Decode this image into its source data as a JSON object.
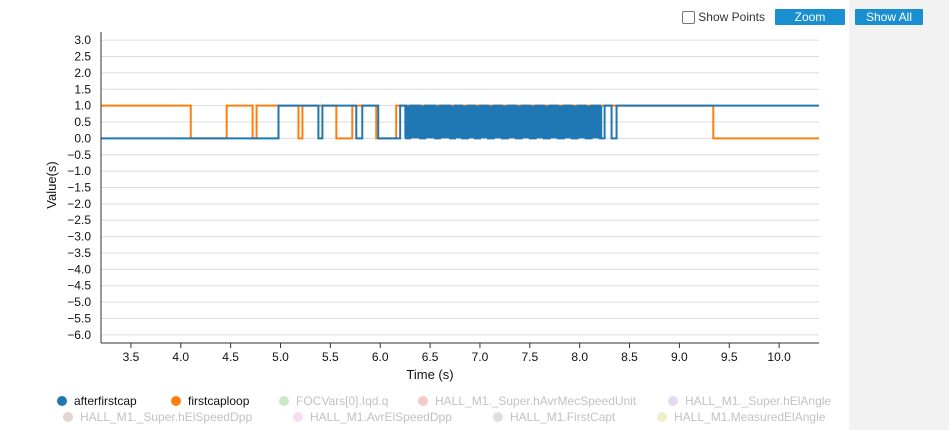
{
  "toolbar": {
    "show_points_label": "Show Points",
    "show_points_checked": false,
    "zoom_label": "Zoom",
    "show_all_label": "Show All"
  },
  "chart_data": {
    "type": "line",
    "title": "",
    "xlabel": "Time (s)",
    "ylabel": "Value(s)",
    "xlim": [
      3.2,
      10.4
    ],
    "ylim": [
      -6.25,
      3.25
    ],
    "x_ticks": [
      "3.5",
      "4.0",
      "4.5",
      "5.0",
      "5.5",
      "6.0",
      "6.5",
      "7.0",
      "7.5",
      "8.0",
      "8.5",
      "9.0",
      "9.5",
      "10.0"
    ],
    "y_ticks": [
      "3.0",
      "2.5",
      "2.0",
      "1.5",
      "1.0",
      "0.5",
      "0.0",
      "−0.5",
      "−1.0",
      "−1.5",
      "−2.0",
      "−2.5",
      "−3.0",
      "−3.5",
      "−4.0",
      "−4.5",
      "−5.0",
      "−5.5",
      "−6.0"
    ],
    "grid": true,
    "legend_position": "bottom",
    "series": [
      {
        "name": "afterfirstcap",
        "color": "#1f77b4",
        "active": true,
        "steps": [
          [
            3.2,
            0
          ],
          [
            4.98,
            1
          ],
          [
            5.38,
            0
          ],
          [
            5.42,
            1
          ],
          [
            5.76,
            0
          ],
          [
            5.82,
            1
          ],
          [
            5.98,
            0
          ],
          [
            6.2,
            1
          ],
          [
            6.26,
            0
          ],
          [
            6.3,
            1
          ],
          [
            6.4,
            0
          ],
          [
            6.45,
            1
          ],
          [
            6.55,
            0
          ],
          [
            6.6,
            1
          ],
          [
            6.7,
            0
          ],
          [
            6.75,
            1
          ],
          [
            6.82,
            0
          ],
          [
            6.88,
            1
          ],
          [
            6.95,
            0
          ],
          [
            7.0,
            1
          ],
          [
            7.08,
            0
          ],
          [
            7.14,
            1
          ],
          [
            7.22,
            0
          ],
          [
            7.28,
            1
          ],
          [
            7.36,
            0
          ],
          [
            7.42,
            1
          ],
          [
            7.5,
            0
          ],
          [
            7.56,
            1
          ],
          [
            7.64,
            0
          ],
          [
            7.7,
            1
          ],
          [
            7.78,
            0
          ],
          [
            7.84,
            1
          ],
          [
            7.92,
            0
          ],
          [
            7.98,
            1
          ],
          [
            8.06,
            0
          ],
          [
            8.12,
            1
          ],
          [
            8.2,
            0
          ],
          [
            8.25,
            1
          ],
          [
            8.32,
            0
          ],
          [
            8.37,
            1
          ],
          [
            10.4,
            1
          ]
        ],
        "dense_toggle": {
          "start": 6.25,
          "end": 8.22,
          "step": 0.012
        }
      },
      {
        "name": "firstcaploop",
        "color": "#ff7f0e",
        "active": true,
        "steps": [
          [
            3.2,
            1
          ],
          [
            4.1,
            0
          ],
          [
            4.46,
            1
          ],
          [
            4.72,
            0
          ],
          [
            4.76,
            1
          ],
          [
            5.18,
            0
          ],
          [
            5.22,
            1
          ],
          [
            5.56,
            0
          ],
          [
            5.72,
            1
          ],
          [
            5.96,
            0
          ],
          [
            6.16,
            1
          ],
          [
            9.34,
            0
          ],
          [
            10.4,
            0
          ]
        ]
      }
    ],
    "legend": [
      {
        "name": "afterfirstcap",
        "color": "#1f77b4",
        "active": true
      },
      {
        "name": "firstcaploop",
        "color": "#ff7f0e",
        "active": true
      },
      {
        "name": "FOCVars[0].Iqd.q",
        "color": "#2ca02c",
        "active": false
      },
      {
        "name": "HALL_M1._Super.hAvrMecSpeedUnit",
        "color": "#d62728",
        "active": false
      },
      {
        "name": "HALL_M1._Super.hElAngle",
        "color": "#9467bd",
        "active": false
      },
      {
        "name": "HALL_M1._Super.hElSpeedDpp",
        "color": "#8c564b",
        "active": false
      },
      {
        "name": "HALL_M1.AvrElSpeedDpp",
        "color": "#e377c2",
        "active": false
      },
      {
        "name": "HALL_M1.FirstCapt",
        "color": "#7f7f7f",
        "active": false
      },
      {
        "name": "HALL_M1.MeasuredElAngle",
        "color": "#bcbd22",
        "active": false
      }
    ]
  }
}
